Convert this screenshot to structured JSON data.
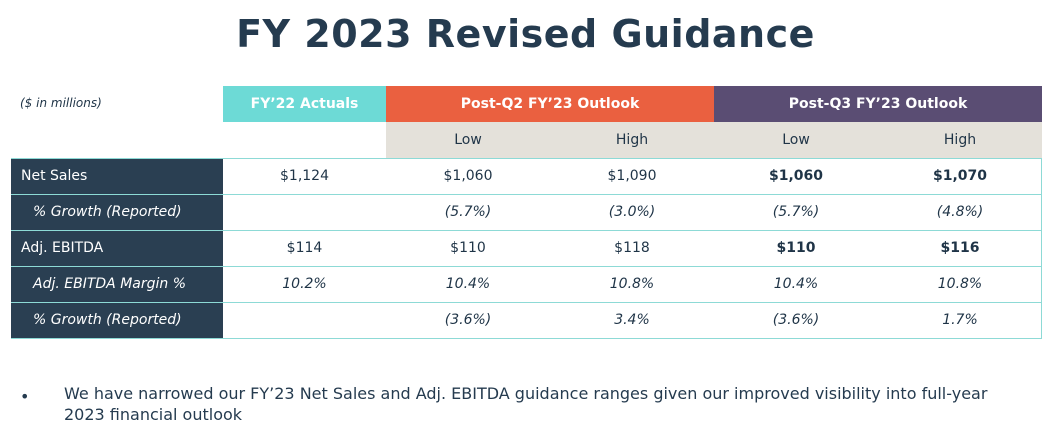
{
  "title": "FY 2023 Revised Guidance",
  "units_note": "($ in millions)",
  "headers": {
    "actuals": "FY’22 Actuals",
    "q2": "Post-Q2 FY’23 Outlook",
    "q3": "Post-Q3 FY’23 Outlook",
    "low": "Low",
    "high": "High"
  },
  "colors": {
    "actuals_header": "#6ddad6",
    "q2_header": "#ea6040",
    "q3_header": "#5a4d73",
    "row_label_bg": "#2a3f52",
    "subheader_bg": "#e4e1da"
  },
  "rows": [
    {
      "label": "Net Sales",
      "actuals": "$1,124",
      "q2_low": "$1,060",
      "q2_high": "$1,090",
      "q3_low": "$1,060",
      "q3_high": "$1,070"
    },
    {
      "label": "% Growth (Reported)",
      "actuals": "",
      "q2_low": "(5.7%)",
      "q2_high": "(3.0%)",
      "q3_low": "(5.7%)",
      "q3_high": "(4.8%)"
    },
    {
      "label": "Adj. EBITDA",
      "actuals": "$114",
      "q2_low": "$110",
      "q2_high": "$118",
      "q3_low": "$110",
      "q3_high": "$116"
    },
    {
      "label": "Adj. EBITDA Margin %",
      "actuals": "10.2%",
      "q2_low": "10.4%",
      "q2_high": "10.8%",
      "q3_low": "10.4%",
      "q3_high": "10.8%"
    },
    {
      "label": "% Growth (Reported)",
      "actuals": "",
      "q2_low": "(3.6%)",
      "q2_high": "3.4%",
      "q3_low": "(3.6%)",
      "q3_high": "1.7%"
    }
  ],
  "bullet_text": "We have narrowed our FY’23 Net Sales and Adj. EBITDA guidance ranges given our improved visibility into full-year 2023 financial outlook"
}
